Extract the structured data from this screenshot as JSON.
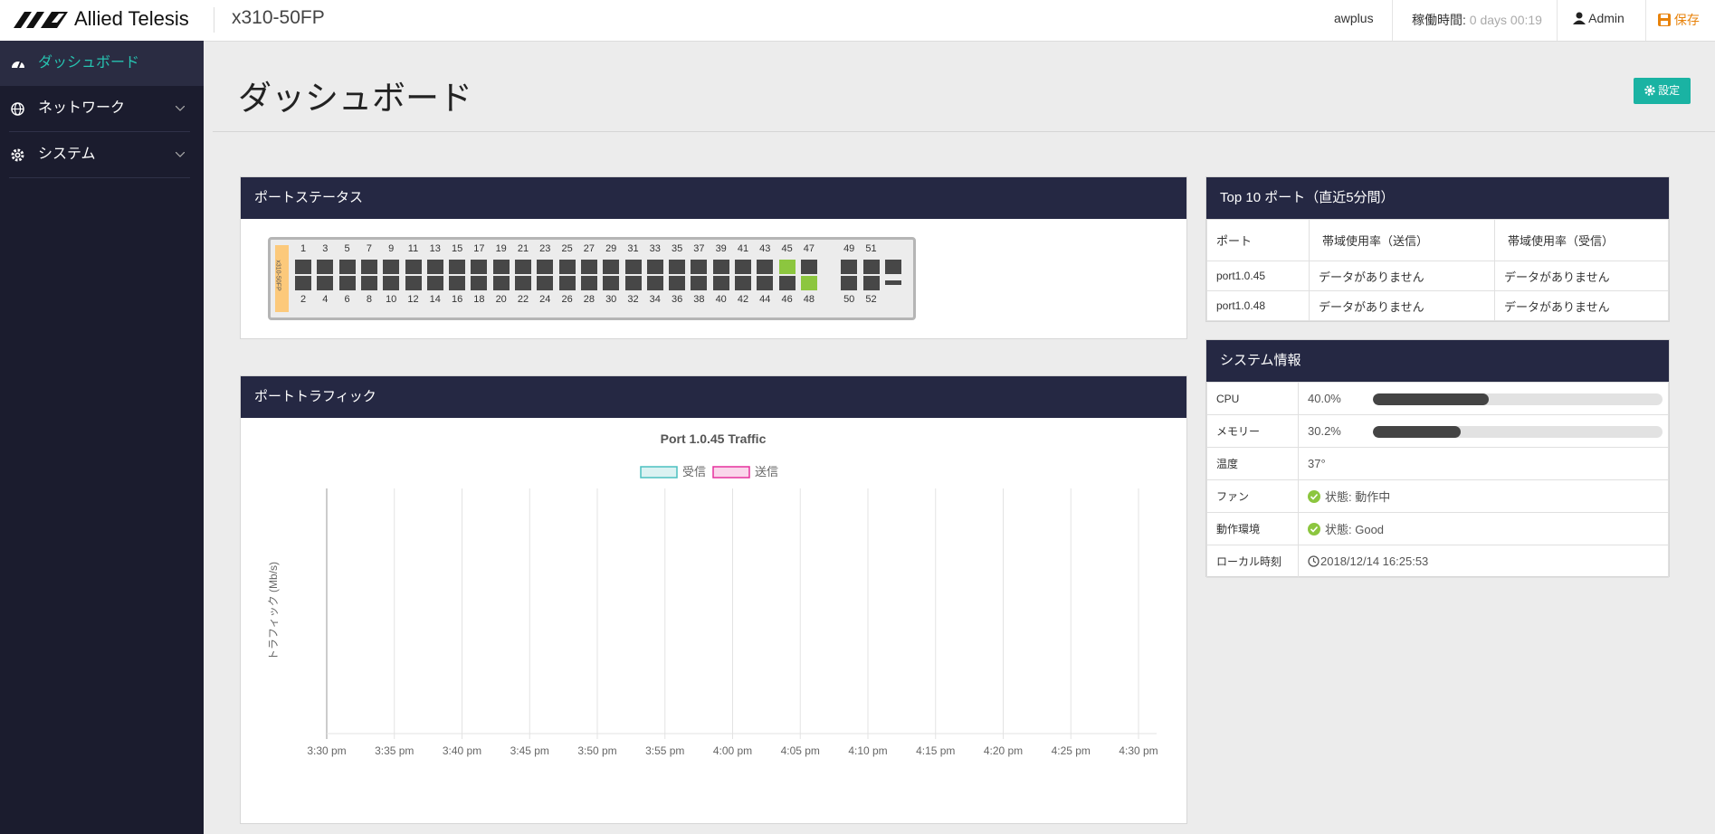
{
  "header": {
    "brand": "Allied Telesis",
    "device": "x310-50FP",
    "user_host": "awplus",
    "uptime_label": "稼働時間:",
    "uptime_value": "0 days 00:19",
    "user": "Admin",
    "save": "保存"
  },
  "sidebar": {
    "items": [
      "ダッシュボード",
      "ネットワーク",
      "システム"
    ]
  },
  "page": {
    "title": "ダッシュボード",
    "settings_button": "設定"
  },
  "port_status": {
    "title": "ポートステータス",
    "model_label": "x310-50FP",
    "columns": [
      {
        "top": 1,
        "bottom": 2
      },
      {
        "top": 3,
        "bottom": 4
      },
      {
        "top": 5,
        "bottom": 6
      },
      {
        "top": 7,
        "bottom": 8
      },
      {
        "top": 9,
        "bottom": 10
      },
      {
        "top": 11,
        "bottom": 12
      },
      {
        "top": 13,
        "bottom": 14
      },
      {
        "top": 15,
        "bottom": 16
      },
      {
        "top": 17,
        "bottom": 18
      },
      {
        "top": 19,
        "bottom": 20
      },
      {
        "top": 21,
        "bottom": 22
      },
      {
        "top": 23,
        "bottom": 24
      },
      {
        "top": 25,
        "bottom": 26
      },
      {
        "top": 27,
        "bottom": 28
      },
      {
        "top": 29,
        "bottom": 30
      },
      {
        "top": 31,
        "bottom": 32
      },
      {
        "top": 33,
        "bottom": 34
      },
      {
        "top": 35,
        "bottom": 36
      },
      {
        "top": 37,
        "bottom": 38
      },
      {
        "top": 39,
        "bottom": 40
      },
      {
        "top": 41,
        "bottom": 42
      },
      {
        "top": 43,
        "bottom": 44
      },
      {
        "top": 45,
        "bottom": 46,
        "top_up": true
      },
      {
        "top": 47,
        "bottom": 48,
        "bottom_up": true
      },
      {
        "top": 49,
        "bottom": 50
      },
      {
        "top": 51,
        "bottom": 52
      },
      {
        "top": null,
        "bottom": null
      }
    ]
  },
  "port_traffic": {
    "title": "ポートトラフィック",
    "chart_data": {
      "type": "line",
      "title": "Port 1.0.45 Traffic",
      "y_label": "トラフィック (Mb/s)",
      "categories": [
        "3:30 pm",
        "3:35 pm",
        "3:40 pm",
        "3:45 pm",
        "3:50 pm",
        "3:55 pm",
        "4:00 pm",
        "4:05 pm",
        "4:10 pm",
        "4:15 pm",
        "4:20 pm",
        "4:25 pm",
        "4:30 pm"
      ],
      "series": [
        {
          "name": "受信",
          "color": "#4bc0c0",
          "values": [
            null,
            null,
            null,
            null,
            null,
            null,
            null,
            null,
            null,
            null,
            null,
            null,
            null
          ]
        },
        {
          "name": "送信",
          "color": "#e6309d",
          "values": [
            null,
            null,
            null,
            null,
            null,
            null,
            null,
            null,
            null,
            null,
            null,
            null,
            null
          ]
        }
      ],
      "grid": true
    }
  },
  "top10": {
    "title": "Top 10 ポート（直近5分間）",
    "columns": [
      "ポート",
      "帯域使用率（送信）",
      "帯域使用率（受信）"
    ],
    "rows": [
      [
        "port1.0.45",
        "データがありません",
        "データがありません"
      ],
      [
        "port1.0.48",
        "データがありません",
        "データがありません"
      ]
    ]
  },
  "system_info": {
    "title": "システム情報",
    "cpu": {
      "label": "CPU",
      "value": 40,
      "value_label": "40.0%"
    },
    "memory": {
      "label": "メモリー",
      "value": 30.2,
      "value_label": "30.2%"
    },
    "bar_max": 100,
    "rows": [
      {
        "label": "温度",
        "value": "37°"
      },
      {
        "label": "ファン",
        "value": "状態: 動作中",
        "status_ok": true
      },
      {
        "label": "動作環境",
        "value": "状態: Good",
        "status_ok": true
      },
      {
        "label": "ローカル時刻",
        "value": "2018/12/14 16:25:53",
        "clock": true
      }
    ]
  }
}
